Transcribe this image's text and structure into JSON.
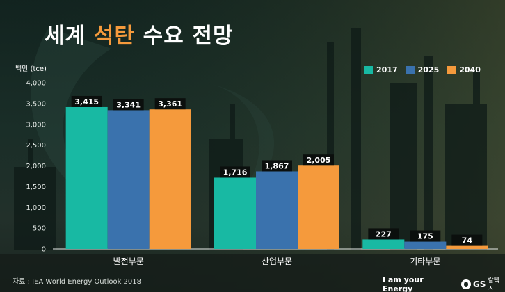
{
  "title": {
    "prefix": "세계 ",
    "accent": "석탄",
    "suffix": " 수요 전망"
  },
  "chart_data": {
    "type": "bar",
    "title": "세계 석탄 수요 전망",
    "ylabel": "백만 (tce)",
    "ylim": [
      0,
      4000
    ],
    "yticks": [
      0,
      500,
      1000,
      1500,
      2000,
      2500,
      3000,
      3500,
      4000
    ],
    "ytick_labels": [
      "0",
      "500",
      "1,000",
      "1,500",
      "2,000",
      "2,500",
      "3,000",
      "3,500",
      "4,000"
    ],
    "categories": [
      "발전부문",
      "산업부문",
      "기타부문"
    ],
    "series": [
      {
        "name": "2017",
        "color": "#18b9a3",
        "values": [
          3415,
          1716,
          227
        ],
        "labels": [
          "3,415",
          "1,716",
          "227"
        ]
      },
      {
        "name": "2025",
        "color": "#3a72ad",
        "values": [
          3341,
          1867,
          175
        ],
        "labels": [
          "3,341",
          "1,867",
          "175"
        ]
      },
      {
        "name": "2040",
        "color": "#f59a3c",
        "values": [
          3361,
          2005,
          74
        ],
        "labels": [
          "3,361",
          "2,005",
          "74"
        ]
      }
    ],
    "grid": false,
    "legend": "top-right"
  },
  "source": "자료 : IEA World Energy Outlook 2018",
  "brand": {
    "slogan": "I am your Energy",
    "name": "GS",
    "sub": "칼텍스"
  }
}
